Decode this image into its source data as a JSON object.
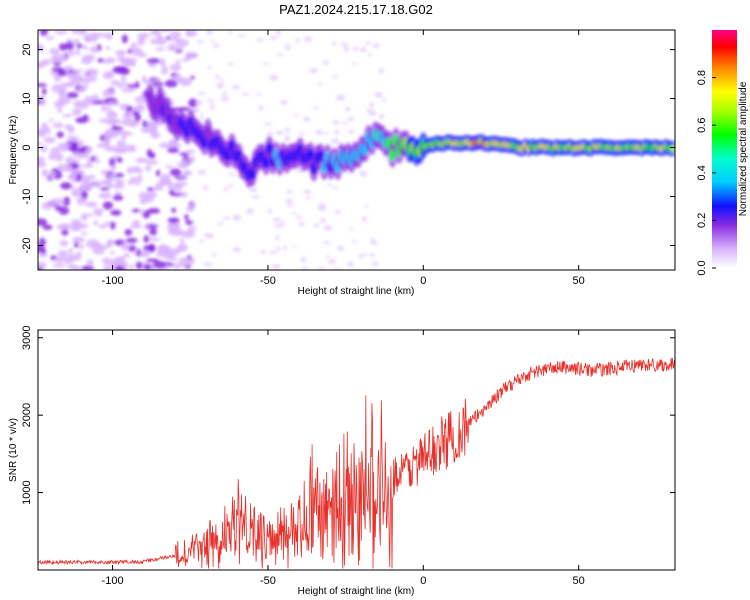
{
  "title": "PAZ1.2024.215.17.18.G02",
  "chart_data": [
    {
      "type": "heatmap",
      "xlabel": "Height of straight line (km)",
      "ylabel": "Frequency (Hz)",
      "xlim": [
        -124,
        81
      ],
      "ylim": [
        -25,
        24
      ],
      "xticks": [
        -100,
        -50,
        0,
        50
      ],
      "yticks": [
        -20,
        -10,
        0,
        10,
        20
      ],
      "colorbar": {
        "label": "Normalized spectral amplitude",
        "range": [
          0,
          1
        ],
        "ticks": [
          0.0,
          0.2,
          0.4,
          0.6,
          0.8
        ]
      },
      "ridge": {
        "x": [
          -85,
          -80,
          -75,
          -70,
          -65,
          -60,
          -55,
          -50,
          -45,
          -40,
          -35,
          -30,
          -25,
          -20,
          -15,
          -10,
          -5,
          0,
          5,
          10,
          15,
          20,
          30,
          40,
          50,
          60,
          70,
          81
        ],
        "freq": [
          9,
          5,
          4,
          2,
          1,
          -2,
          -5,
          -1,
          -2,
          -2,
          -3,
          -3,
          -2,
          -1,
          2,
          0,
          0,
          0,
          1,
          1,
          1,
          1,
          0,
          0,
          0,
          0,
          0,
          0
        ],
        "amplitude": [
          0.25,
          0.3,
          0.3,
          0.3,
          0.3,
          0.3,
          0.3,
          0.35,
          0.35,
          0.35,
          0.35,
          0.35,
          0.4,
          0.4,
          0.45,
          0.6,
          0.65,
          0.7,
          0.7,
          0.75,
          0.85,
          0.8,
          0.75,
          0.75,
          0.75,
          0.7,
          0.7,
          0.7
        ]
      }
    },
    {
      "type": "line",
      "xlabel": "Height of straight line (km)",
      "ylabel": "SNR (10 * v/v)",
      "xlim": [
        -124,
        81
      ],
      "ylim": [
        0,
        3100
      ],
      "xticks": [
        -100,
        -50,
        0,
        50
      ],
      "yticks": [
        1000,
        2000,
        3000
      ],
      "color": "#e8302a",
      "envelope": {
        "x": [
          -124,
          -100,
          -90,
          -80,
          -70,
          -60,
          -55,
          -50,
          -45,
          -40,
          -35,
          -30,
          -25,
          -20,
          -15,
          -10,
          -5,
          0,
          5,
          10,
          15,
          20,
          25,
          30,
          35,
          40,
          45,
          50,
          55,
          60,
          70,
          81
        ],
        "y": [
          100,
          100,
          110,
          180,
          300,
          500,
          550,
          350,
          400,
          500,
          700,
          850,
          900,
          1000,
          1100,
          1200,
          1300,
          1450,
          1600,
          1750,
          1900,
          2100,
          2300,
          2450,
          2550,
          2600,
          2620,
          2600,
          2580,
          2600,
          2650,
          2650
        ]
      }
    }
  ]
}
